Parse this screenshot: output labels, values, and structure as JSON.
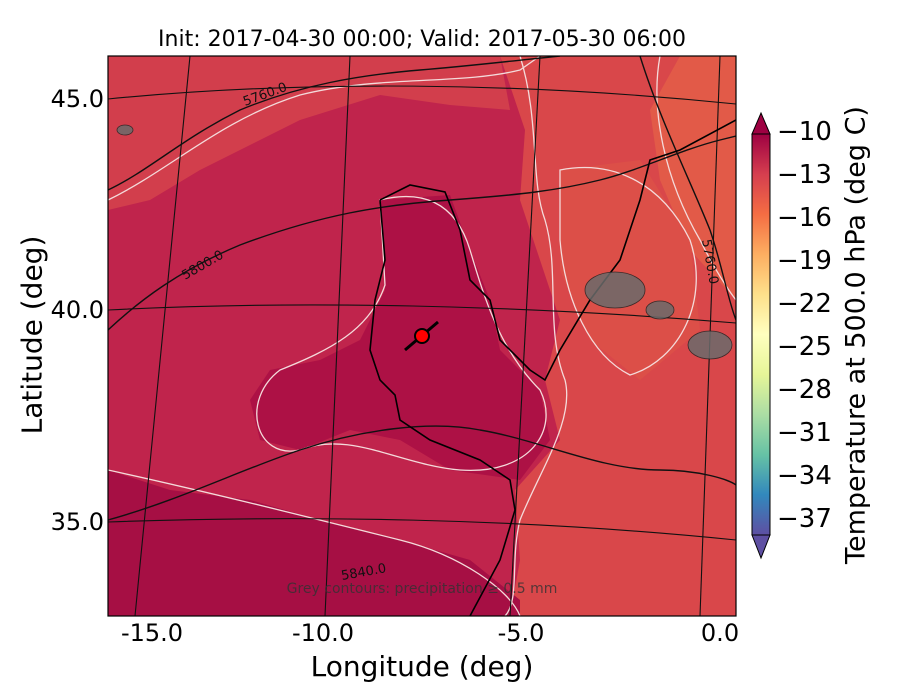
{
  "figure": {
    "title": "Init: 2017-04-30 00:00; Valid: 2017-05-30 06:00",
    "xlabel": "Longitude (deg)",
    "ylabel": "Latitude (deg)",
    "colorbar_label": "Temperature at 500.0 hPa (deg C)",
    "note": "Grey contours: precipitation ≥ 0.5 mm"
  },
  "chart_data": {
    "type": "heatmap",
    "map_projection": "conic",
    "xlim": [
      -16,
      0.3
    ],
    "ylim": [
      32.8,
      46.1
    ],
    "x_ticks": [
      "-15.0",
      "-10.0",
      "-5.0",
      "0.0"
    ],
    "y_ticks": [
      "35.0",
      "40.0",
      "45.0"
    ],
    "colorbar_ticks": [
      "−10",
      "−13",
      "−16",
      "−19",
      "−22",
      "−25",
      "−28",
      "−31",
      "−34",
      "−37"
    ],
    "colorbar_range": [
      -38.5,
      -8.5
    ],
    "colorbar_colors": [
      "#5e4fa2",
      "#3288bd",
      "#66c2a5",
      "#abdda4",
      "#e6f598",
      "#ffffbf",
      "#fee08b",
      "#fdae61",
      "#f46d43",
      "#d53e4f",
      "#9e0142"
    ],
    "height_contour_labels": [
      "5760.0",
      "5800.0",
      "5840.0",
      "5760.0"
    ],
    "marker": {
      "lon": -7.6,
      "lat": 39.3,
      "color": "#ff0000"
    }
  }
}
